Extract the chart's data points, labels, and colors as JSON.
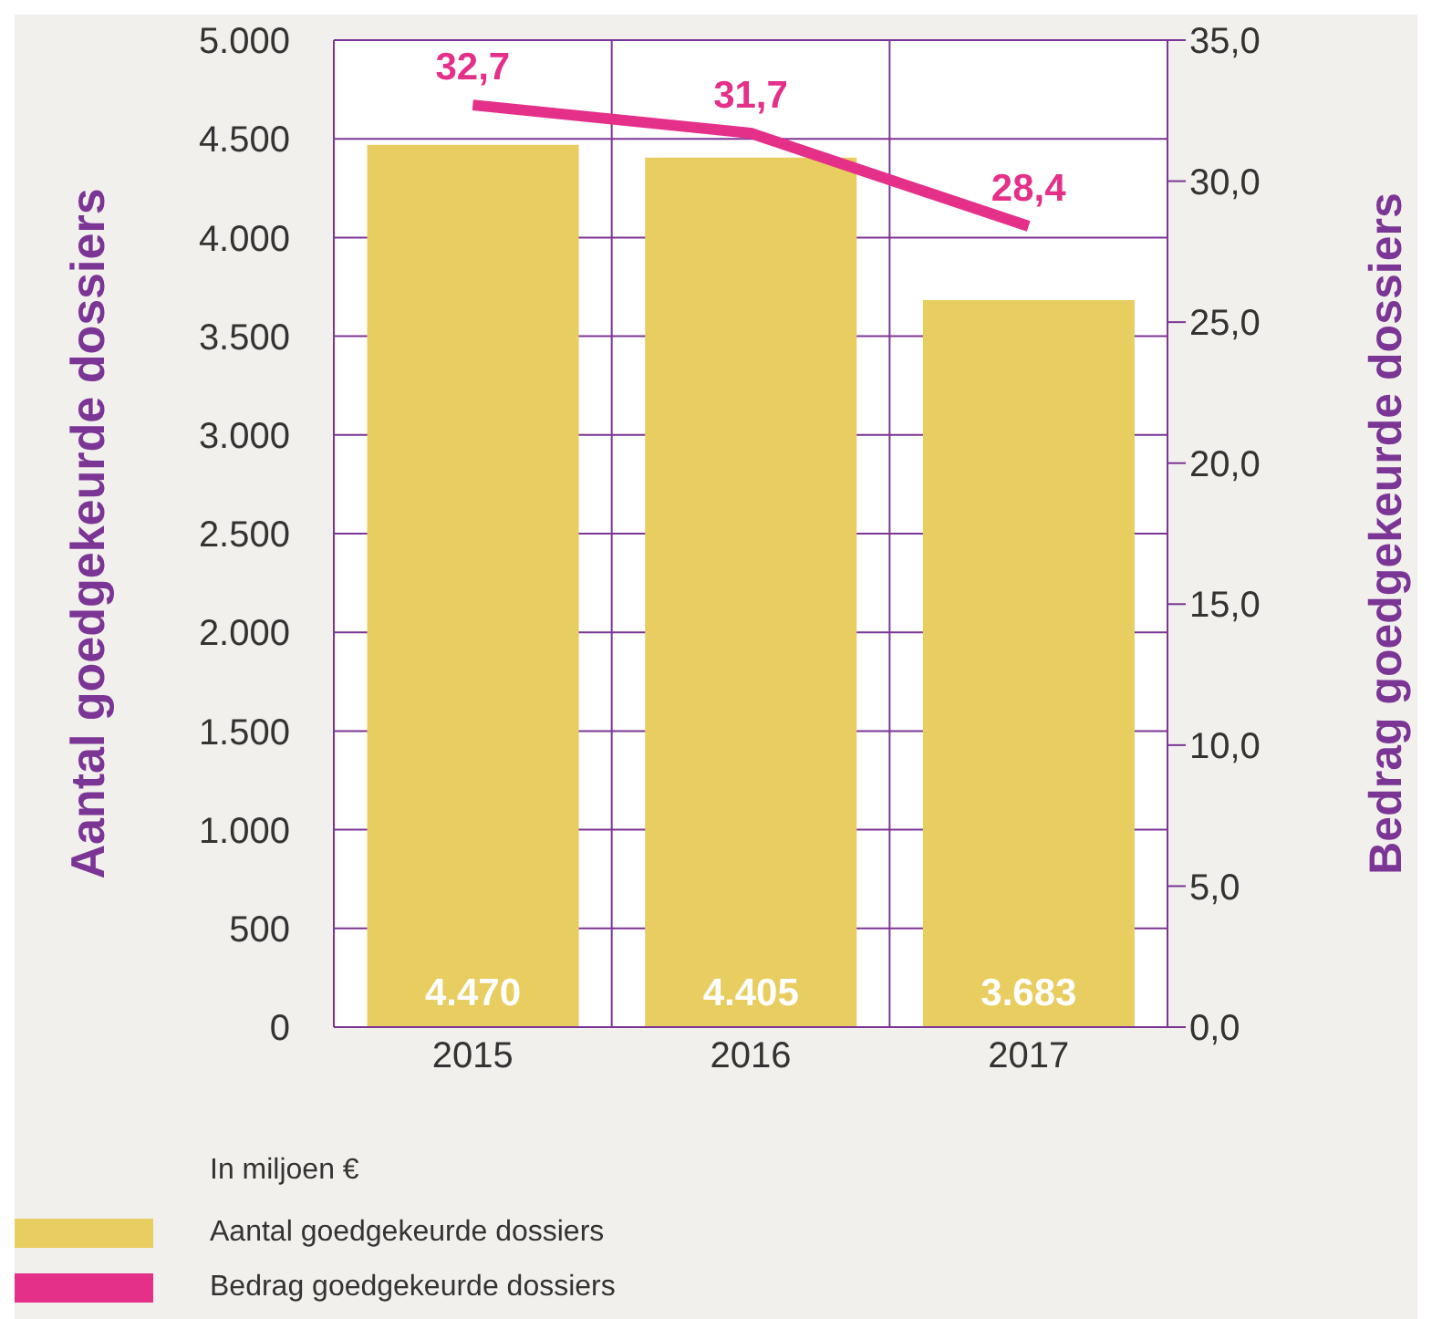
{
  "chart_data": {
    "type": "bar",
    "categories": [
      "2015",
      "2016",
      "2017"
    ],
    "ylabel": "Aantal goedgekeurde dossiers",
    "y2label": "Bedrag goedgekeurde dossiers",
    "legend_title": "In miljoen €",
    "series": [
      {
        "name": "Aantal goedgekeurde dossiers",
        "color": "#e8cd60",
        "values": [
          4470,
          4405,
          3683
        ],
        "value_labels": [
          "4.470",
          "4.405",
          "3.683"
        ]
      },
      {
        "name": "Bedrag goedgekeurde dossiers",
        "type": "line",
        "axis": "y2",
        "color": "#e5308a",
        "values": [
          32.7,
          31.7,
          28.4
        ],
        "value_labels": [
          "32,7",
          "31,7",
          "28,4"
        ]
      }
    ],
    "ylim": [
      0,
      5000
    ],
    "yticks": [
      0,
      500,
      {
        "value": 1000,
        "label": "1.000"
      },
      {
        "value": 1500,
        "label": "1.500"
      },
      {
        "value": 2000,
        "label": "2.000"
      },
      {
        "value": 2500,
        "label": "2.500"
      },
      {
        "value": 3000,
        "label": "3.000"
      },
      {
        "value": 3500,
        "label": "3.500"
      },
      {
        "value": 4000,
        "label": "4.000"
      },
      {
        "value": 4500,
        "label": "4.500"
      },
      {
        "value": 5000,
        "label": "5.000"
      }
    ],
    "y2lim": [
      0,
      35
    ],
    "y2ticks": [
      {
        "value": 0,
        "label": "0,0"
      },
      {
        "value": 5,
        "label": "5,0"
      },
      {
        "value": 10,
        "label": "10,0"
      },
      {
        "value": 15,
        "label": "15,0"
      },
      {
        "value": 20,
        "label": "20,0"
      },
      {
        "value": 25,
        "label": "25,0"
      },
      {
        "value": 30,
        "label": "30,0"
      },
      {
        "value": 35,
        "label": "35,0"
      }
    ],
    "grid": true,
    "legend": "bottom",
    "marker": "none"
  }
}
